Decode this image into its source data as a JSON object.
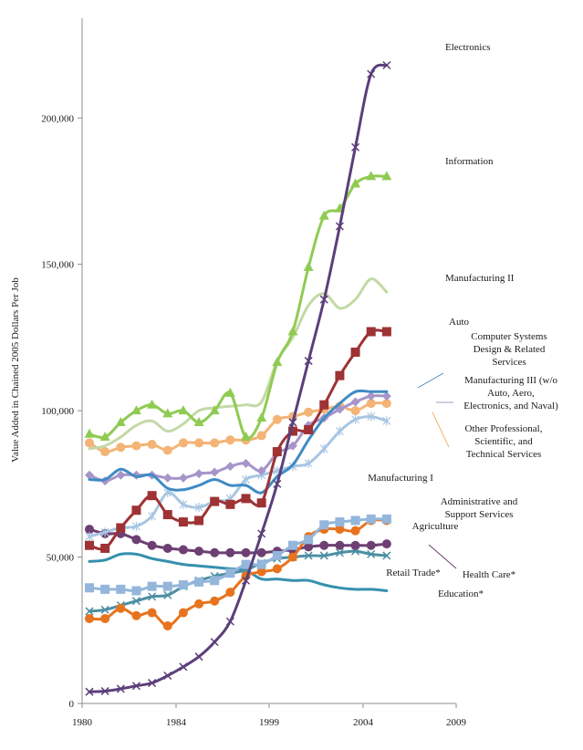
{
  "chart_data": {
    "type": "line",
    "title": "",
    "xlabel": "",
    "ylabel": "Value Added in Chained 2005 Dollars Per Job",
    "xlim": [
      1980,
      2009
    ],
    "ylim": [
      0,
      230000
    ],
    "x_ticks": [
      "1980",
      "1984",
      "1999",
      "2004",
      "2009"
    ],
    "y_ticks": [
      {
        "value": 0,
        "label": "0"
      },
      {
        "value": 50000,
        "label": "50,000"
      },
      {
        "value": 100000,
        "label": "100,000"
      },
      {
        "value": 150000,
        "label": "150,000"
      },
      {
        "value": 200000,
        "label": "200,000"
      }
    ],
    "grid": false,
    "legend": "inline labels at right",
    "x": [
      1,
      2,
      3,
      4,
      5,
      6,
      7,
      8,
      9,
      10,
      11,
      12,
      13,
      14,
      15,
      16,
      17,
      18,
      19,
      20
    ],
    "series": [
      {
        "name": "Electronics",
        "color": "#5b3f7a",
        "marker": "x",
        "values": [
          4000,
          4200,
          5000,
          6000,
          7000,
          9500,
          12500,
          16000,
          21000,
          28000,
          42000,
          58000,
          75000,
          96000,
          117000,
          138000,
          163000,
          190000,
          215000,
          218000
        ]
      },
      {
        "name": "Information",
        "color": "#8fcb52",
        "marker": "triangle",
        "values": [
          92000,
          91000,
          96000,
          100000,
          102000,
          99000,
          100000,
          96000,
          100000,
          106000,
          91000,
          97500,
          116500,
          127000,
          149000,
          166500,
          169000,
          177500,
          180000,
          180000
        ]
      },
      {
        "name": "Manufacturing II",
        "color": "#c3d9a6",
        "marker": "none",
        "values": [
          87000,
          88000,
          91000,
          95000,
          96500,
          93000,
          95500,
          100000,
          101000,
          101500,
          102000,
          103000,
          117000,
          125000,
          136000,
          140000,
          135000,
          138000,
          145000,
          140500
        ]
      },
      {
        "name": "Auto",
        "color": "#9e3234",
        "marker": "square",
        "values": [
          54000,
          53000,
          60000,
          66000,
          71000,
          64500,
          62000,
          62500,
          69000,
          68000,
          70000,
          68500,
          86000,
          93000,
          93500,
          102000,
          112000,
          120000,
          127000,
          127000
        ]
      },
      {
        "name": "Computer Systems Design & Related Services",
        "color": "#3f8bc5",
        "marker": "none",
        "values": [
          76500,
          76500,
          80000,
          77500,
          78000,
          73500,
          73000,
          74500,
          76500,
          74500,
          74500,
          72000,
          77500,
          81500,
          90000,
          97500,
          102500,
          106500,
          106500,
          106500
        ]
      },
      {
        "name": "Manufacturing III (w/o Auto, Aero, Electronics, and Naval)",
        "color": "#a795c9",
        "marker": "diamond",
        "values": [
          78000,
          76000,
          78000,
          78000,
          78000,
          77000,
          77000,
          78500,
          79000,
          81000,
          82000,
          79500,
          85500,
          88000,
          95000,
          97500,
          100500,
          103000,
          105000,
          105000
        ]
      },
      {
        "name": "Other Professional, Scientific, and Technical Services",
        "color": "#f3b475",
        "marker": "circle",
        "values": [
          89000,
          86000,
          87500,
          88000,
          88500,
          86500,
          89000,
          89000,
          89000,
          90000,
          90000,
          91500,
          97000,
          98000,
          99500,
          100500,
          101500,
          100000,
          102500,
          102500
        ]
      },
      {
        "name": "Manufacturing I",
        "color": "#a8c6e2",
        "marker": "star",
        "values": [
          57000,
          58500,
          60000,
          60500,
          64000,
          72000,
          68000,
          67000,
          69000,
          70000,
          76500,
          78000,
          79500,
          81000,
          82000,
          87000,
          93000,
          97000,
          98000,
          96500
        ]
      },
      {
        "name": "Administrative and Support Services",
        "color": "#94b6db",
        "marker": "square",
        "values": [
          39500,
          39000,
          39000,
          38500,
          40000,
          40000,
          40500,
          41500,
          42000,
          44500,
          47500,
          47500,
          50500,
          54000,
          56000,
          61000,
          62000,
          62500,
          63000,
          63000
        ]
      },
      {
        "name": "Agriculture",
        "color": "#e8731e",
        "marker": "circle",
        "values": [
          29000,
          29000,
          32500,
          30000,
          31000,
          26500,
          31000,
          34000,
          35000,
          38000,
          43500,
          45000,
          46000,
          50000,
          57000,
          59500,
          59500,
          59000,
          62500,
          62500
        ]
      },
      {
        "name": "Health Care*",
        "color": "#6e3f73",
        "marker": "circle",
        "values": [
          59500,
          58000,
          58000,
          56000,
          54000,
          53000,
          52500,
          52000,
          51500,
          51500,
          51500,
          51500,
          52000,
          52500,
          53500,
          54000,
          54000,
          54000,
          54000,
          54500
        ]
      },
      {
        "name": "Retail Trade*",
        "color": "#4d8fa2",
        "marker": "x",
        "values": [
          31500,
          32000,
          33500,
          35000,
          36500,
          37000,
          40000,
          42000,
          43500,
          44500,
          45500,
          48000,
          49500,
          50000,
          50500,
          50500,
          51500,
          52000,
          51000,
          50500
        ]
      },
      {
        "name": "Education*",
        "color": "#3591ad",
        "marker": "none",
        "values": [
          48500,
          49000,
          51000,
          51000,
          49500,
          48500,
          47500,
          47000,
          46500,
          46000,
          45500,
          42500,
          42500,
          42000,
          42000,
          40500,
          39500,
          39000,
          39000,
          38500
        ]
      }
    ]
  }
}
